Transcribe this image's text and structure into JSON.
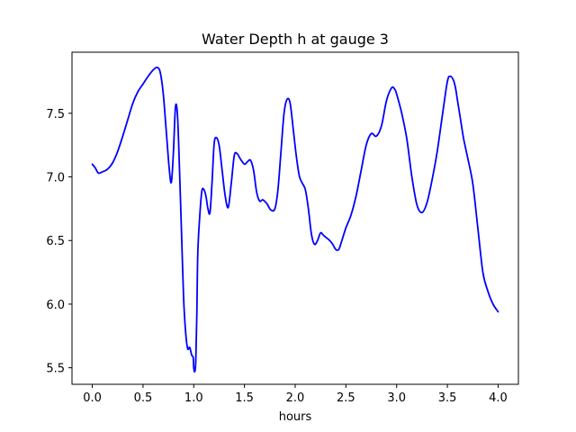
{
  "chart_data": {
    "type": "line",
    "title": "Water Depth h at gauge 3",
    "xlabel": "hours",
    "ylabel": "",
    "xlim": [
      -0.2,
      4.2
    ],
    "ylim": [
      5.37,
      7.98
    ],
    "x_ticks": [
      0.0,
      0.5,
      1.0,
      1.5,
      2.0,
      2.5,
      3.0,
      3.5,
      4.0
    ],
    "x_tick_labels": [
      "0.0",
      "0.5",
      "1.0",
      "1.5",
      "2.0",
      "2.5",
      "3.0",
      "3.5",
      "4.0"
    ],
    "y_ticks": [
      5.5,
      6.0,
      6.5,
      7.0,
      7.5
    ],
    "y_tick_labels": [
      "5.5",
      "6.0",
      "6.5",
      "7.0",
      "7.5"
    ],
    "grid": false,
    "series": [
      {
        "color": "#0000ff",
        "x": [
          0.0,
          0.03,
          0.06,
          0.1,
          0.15,
          0.2,
          0.25,
          0.3,
          0.35,
          0.4,
          0.45,
          0.5,
          0.55,
          0.6,
          0.64,
          0.67,
          0.7,
          0.73,
          0.76,
          0.78,
          0.8,
          0.82,
          0.84,
          0.86,
          0.88,
          0.9,
          0.92,
          0.94,
          0.96,
          0.98,
          0.995,
          1.0,
          1.01,
          1.02,
          1.03,
          1.04,
          1.06,
          1.08,
          1.1,
          1.12,
          1.14,
          1.16,
          1.18,
          1.2,
          1.22,
          1.25,
          1.28,
          1.31,
          1.34,
          1.37,
          1.4,
          1.43,
          1.46,
          1.5,
          1.53,
          1.56,
          1.59,
          1.62,
          1.65,
          1.68,
          1.72,
          1.76,
          1.8,
          1.83,
          1.86,
          1.89,
          1.92,
          1.95,
          1.98,
          2.01,
          2.04,
          2.07,
          2.1,
          2.13,
          2.16,
          2.19,
          2.22,
          2.25,
          2.28,
          2.31,
          2.34,
          2.37,
          2.4,
          2.43,
          2.46,
          2.5,
          2.55,
          2.6,
          2.65,
          2.7,
          2.75,
          2.8,
          2.85,
          2.9,
          2.95,
          2.98,
          3.0,
          3.05,
          3.1,
          3.15,
          3.2,
          3.25,
          3.3,
          3.35,
          3.4,
          3.45,
          3.5,
          3.53,
          3.56,
          3.58,
          3.6,
          3.63,
          3.66,
          3.7,
          3.75,
          3.8,
          3.85,
          3.9,
          3.95,
          4.0
        ],
        "values": [
          7.1,
          7.07,
          7.03,
          7.04,
          7.06,
          7.11,
          7.2,
          7.32,
          7.45,
          7.58,
          7.67,
          7.73,
          7.79,
          7.84,
          7.86,
          7.82,
          7.65,
          7.35,
          7.05,
          6.96,
          7.2,
          7.55,
          7.48,
          7.05,
          6.55,
          6.05,
          5.78,
          5.65,
          5.66,
          5.6,
          5.58,
          5.5,
          5.47,
          5.55,
          5.9,
          6.4,
          6.7,
          6.89,
          6.9,
          6.85,
          6.75,
          6.72,
          6.95,
          7.25,
          7.31,
          7.25,
          7.05,
          6.85,
          6.76,
          6.95,
          7.17,
          7.18,
          7.14,
          7.1,
          7.12,
          7.13,
          7.05,
          6.88,
          6.81,
          6.82,
          6.79,
          6.74,
          6.75,
          6.9,
          7.2,
          7.5,
          7.61,
          7.58,
          7.38,
          7.17,
          7.01,
          6.95,
          6.9,
          6.75,
          6.55,
          6.47,
          6.5,
          6.56,
          6.54,
          6.52,
          6.5,
          6.47,
          6.43,
          6.43,
          6.5,
          6.6,
          6.7,
          6.85,
          7.05,
          7.25,
          7.34,
          7.32,
          7.4,
          7.6,
          7.7,
          7.69,
          7.65,
          7.5,
          7.3,
          7.0,
          6.78,
          6.72,
          6.8,
          6.98,
          7.2,
          7.48,
          7.75,
          7.79,
          7.76,
          7.7,
          7.6,
          7.45,
          7.3,
          7.15,
          6.95,
          6.6,
          6.25,
          6.1,
          6.0,
          5.94
        ]
      }
    ]
  }
}
